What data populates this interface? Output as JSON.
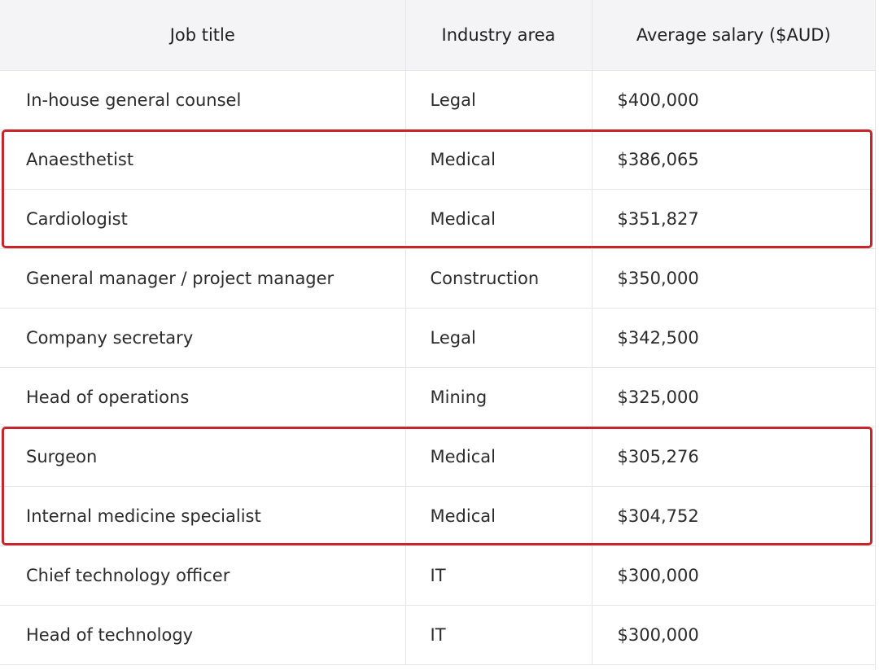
{
  "table": {
    "headers": [
      "Job title",
      "Industry area",
      "Average salary ($AUD)"
    ],
    "rows": [
      {
        "job": "In-house general counsel",
        "industry": "Legal",
        "salary": "$400,000"
      },
      {
        "job": "Anaesthetist",
        "industry": "Medical",
        "salary": "$386,065"
      },
      {
        "job": "Cardiologist",
        "industry": "Medical",
        "salary": "$351,827"
      },
      {
        "job": "General manager / project manager",
        "industry": "Construction",
        "salary": "$350,000"
      },
      {
        "job": "Company secretary",
        "industry": "Legal",
        "salary": "$342,500"
      },
      {
        "job": "Head of operations",
        "industry": "Mining",
        "salary": "$325,000"
      },
      {
        "job": "Surgeon",
        "industry": "Medical",
        "salary": "$305,276"
      },
      {
        "job": "Internal medicine specialist",
        "industry": "Medical",
        "salary": "$304,752"
      },
      {
        "job": "Chief technology officer",
        "industry": "IT",
        "salary": "$300,000"
      },
      {
        "job": "Head of technology",
        "industry": "IT",
        "salary": "$300,000"
      }
    ]
  },
  "highlight_color": "#c8242b"
}
